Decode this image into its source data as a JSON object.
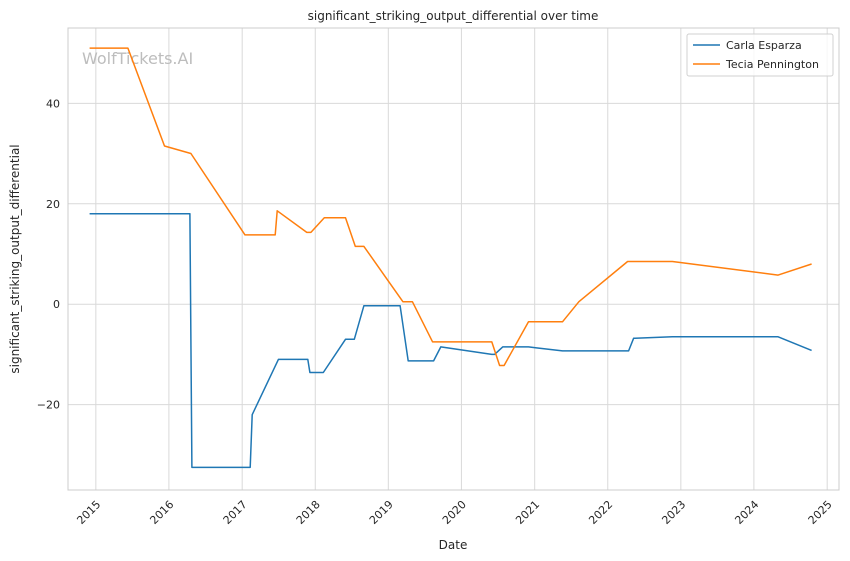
{
  "chart_data": {
    "type": "line",
    "title": "significant_striking_output_differential over time",
    "xlabel": "Date",
    "ylabel": "significant_striking_output_differential",
    "watermark": "WolfTickets.AI",
    "x_ticks": [
      "2015",
      "2016",
      "2017",
      "2018",
      "2019",
      "2020",
      "2021",
      "2022",
      "2023",
      "2024",
      "2025"
    ],
    "y_ticks": [
      -20,
      0,
      20,
      40
    ],
    "xlim": [
      "2014-08-15",
      "2025-03-01"
    ],
    "ylim": [
      -37,
      55
    ],
    "grid": true,
    "legend_position": "top-right",
    "series": [
      {
        "name": "Carla Esparza",
        "color": "#1f77b4",
        "points": [
          [
            "2014-12-01",
            18
          ],
          [
            "2016-04-15",
            18
          ],
          [
            "2016-04-25",
            -32.5
          ],
          [
            "2017-02-10",
            -32.5
          ],
          [
            "2017-02-20",
            -22
          ],
          [
            "2017-07-01",
            -11
          ],
          [
            "2017-11-25",
            -11
          ],
          [
            "2017-12-05",
            -13.6
          ],
          [
            "2018-02-10",
            -13.6
          ],
          [
            "2018-06-01",
            -7
          ],
          [
            "2018-07-15",
            -7
          ],
          [
            "2018-09-01",
            -0.3
          ],
          [
            "2019-03-01",
            -0.3
          ],
          [
            "2019-04-10",
            -11.3
          ],
          [
            "2019-08-15",
            -11.3
          ],
          [
            "2019-09-20",
            -8.5
          ],
          [
            "2020-06-01",
            -10
          ],
          [
            "2020-06-15",
            -10
          ],
          [
            "2020-07-25",
            -8.5
          ],
          [
            "2020-12-01",
            -8.5
          ],
          [
            "2021-01-10",
            -8.7
          ],
          [
            "2021-05-20",
            -9.3
          ],
          [
            "2022-04-15",
            -9.3
          ],
          [
            "2022-05-10",
            -6.8
          ],
          [
            "2022-11-20",
            -6.5
          ],
          [
            "2023-05-01",
            -6.5
          ],
          [
            "2024-05-01",
            -6.5
          ],
          [
            "2024-10-15",
            -9.2
          ]
        ]
      },
      {
        "name": "Tecia Pennington",
        "color": "#ff7f0e",
        "points": [
          [
            "2014-12-01",
            51
          ],
          [
            "2015-06-10",
            51
          ],
          [
            "2015-12-10",
            31.5
          ],
          [
            "2016-04-20",
            30
          ],
          [
            "2017-01-15",
            13.8
          ],
          [
            "2017-06-15",
            13.8
          ],
          [
            "2017-06-25",
            18.6
          ],
          [
            "2017-11-20",
            14.3
          ],
          [
            "2017-12-10",
            14.3
          ],
          [
            "2018-02-15",
            17.2
          ],
          [
            "2018-06-01",
            17.2
          ],
          [
            "2018-07-20",
            11.5
          ],
          [
            "2018-09-01",
            11.5
          ],
          [
            "2019-03-15",
            0.5
          ],
          [
            "2019-05-01",
            0.5
          ],
          [
            "2019-08-10",
            -7.5
          ],
          [
            "2020-06-01",
            -7.5
          ],
          [
            "2020-07-10",
            -12.2
          ],
          [
            "2020-08-01",
            -12.2
          ],
          [
            "2020-12-01",
            -3.5
          ],
          [
            "2021-05-20",
            -3.5
          ],
          [
            "2021-08-10",
            0.5
          ],
          [
            "2022-04-10",
            8.5
          ],
          [
            "2022-11-20",
            8.5
          ],
          [
            "2024-05-01",
            5.8
          ],
          [
            "2024-10-15",
            8
          ]
        ]
      }
    ]
  }
}
